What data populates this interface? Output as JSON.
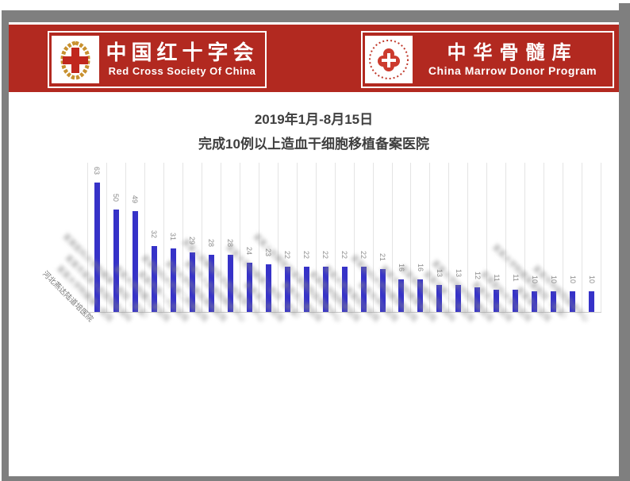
{
  "banners": {
    "left": {
      "title_cn": "中国红十字会",
      "title_en": "Red Cross Society Of China",
      "logo": "red-cross-laurel-emblem"
    },
    "right": {
      "title_cn": "中华骨髓库",
      "title_en": "China Marrow Donor Program",
      "logo": "cmdp-circular-emblem"
    },
    "band_color": "#b22920"
  },
  "chart_data": {
    "type": "bar",
    "title": "2019年1月-8月15日",
    "subtitle": "完成10例以上造血干细胞移植备案医院",
    "values": [
      63,
      50,
      49,
      32,
      31,
      29,
      28,
      28,
      24,
      23,
      22,
      22,
      22,
      22,
      22,
      21,
      16,
      16,
      13,
      13,
      12,
      11,
      11,
      10,
      10,
      10,
      10
    ],
    "categories": [
      "河北燕达陆道培医院",
      "某某大学附属第一医院",
      "某某市某某人民医院血液科",
      "某某医科大学附属第一医院（某某）",
      "某某大学附属儿童医院",
      "某某市第一人民医院",
      "某某医科大学第二附属医院",
      "某某大学附属血液病医院",
      "某某市人民医院移植中心",
      "某某人民解放军总医院某医学中心",
      "某某省人民医院",
      "某某大学附属第二医院（某某）",
      "某某市儿童医院",
      "某某人民解放军某某医院血液病中心",
      "某某医学院附属医院",
      "某某大学某某纪念医院",
      "某某市中心医院",
      "某某医科大学附属协和医院",
      "某某大学附属某某医院",
      "某某省肿瘤医院血液科",
      "某某市第二人民医院",
      "某某大学医学院附属医院",
      "某某市人民医院",
      "某某医科大学总医院",
      "某某省立医院",
      "某某大学附属某某医院（某某）",
      "某某市中医院血液中心"
    ],
    "category_blurred": [
      false,
      true,
      true,
      true,
      true,
      true,
      true,
      true,
      true,
      true,
      true,
      true,
      true,
      true,
      true,
      true,
      true,
      true,
      true,
      true,
      true,
      true,
      true,
      true,
      true,
      true,
      true
    ],
    "bar_color": "#3632c8",
    "value_label_color": "#8c8c8c",
    "gridlines": "vertical-category-separators",
    "ylim": [
      0,
      70
    ],
    "legend": "none"
  }
}
